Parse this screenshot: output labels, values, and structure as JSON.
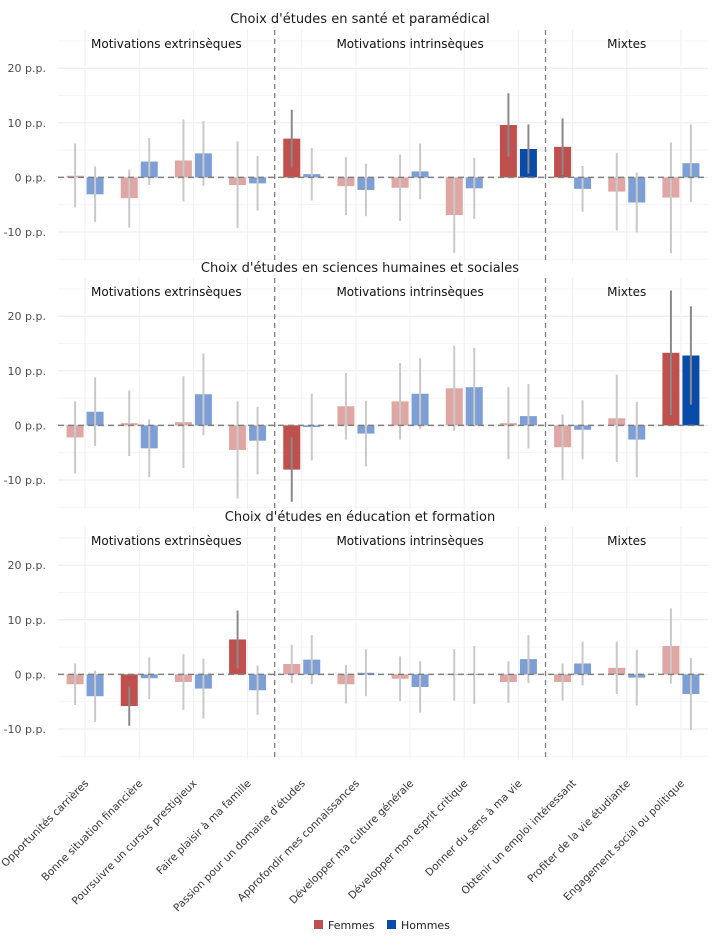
{
  "legend": [
    {
      "name": "Femmes",
      "color": "#c0504d"
    },
    {
      "name": "Hommes",
      "color": "#0a4aa8"
    }
  ],
  "colors": {
    "femmes_sig": "#c0504d",
    "femmes_nonsig": "#dfa6a3",
    "hommes_sig": "#0a4aa8",
    "hommes_nonsig": "#7d9fd6",
    "grid": "#ebebeb",
    "zero_line": "#808080",
    "separator": "#808080"
  },
  "chart_data": {
    "type": "bar",
    "categories": [
      "Opportunités carrières",
      "Bonne situation financière",
      "Poursuivre un cursus prestigieux",
      "Faire plaisir à ma famille",
      "Passion pour un domaine d'études",
      "Approfondir mes connaissances",
      "Développer ma culture générale",
      "Développer mon esprit critique",
      "Donner du sens à ma vie",
      "Obtenir un emploi intéressant",
      "Profiter de la vie étudiante",
      "Engagement social ou politique"
    ],
    "groups": [
      {
        "label": "Motivations extrinsèques",
        "count": 4
      },
      {
        "label": "Motivations intrinsèques",
        "count": 5
      },
      {
        "label": "Mixtes",
        "count": 3
      }
    ],
    "y_ticks": [
      -10,
      0,
      10,
      20
    ],
    "y_tick_labels": [
      "-10 p.p.",
      "0 p.p.",
      "10 p.p.",
      "20 p.p."
    ],
    "ylim": [
      -15.5,
      27
    ],
    "grid": true,
    "legend_position": "bottom",
    "panels": [
      {
        "title": "Choix d'études en santé et paramédical",
        "femmes": [
          {
            "v": 0.3,
            "lo": -5.5,
            "hi": 6.2,
            "sig": false
          },
          {
            "v": -3.8,
            "lo": -9.2,
            "hi": 1.4,
            "sig": false
          },
          {
            "v": 3.1,
            "lo": -4.4,
            "hi": 10.6,
            "sig": false
          },
          {
            "v": -1.4,
            "lo": -9.3,
            "hi": 6.6,
            "sig": false
          },
          {
            "v": 7.1,
            "lo": 1.8,
            "hi": 12.4,
            "sig": true
          },
          {
            "v": -1.6,
            "lo": -6.9,
            "hi": 3.7,
            "sig": false
          },
          {
            "v": -1.9,
            "lo": -8.0,
            "hi": 4.2,
            "sig": false
          },
          {
            "v": -6.9,
            "lo": -13.8,
            "hi": 0.0,
            "sig": false
          },
          {
            "v": 9.6,
            "lo": 3.8,
            "hi": 15.4,
            "sig": true
          },
          {
            "v": 5.6,
            "lo": 0.4,
            "hi": 10.8,
            "sig": true
          },
          {
            "v": -2.6,
            "lo": -9.7,
            "hi": 4.5,
            "sig": false
          },
          {
            "v": -3.7,
            "lo": -13.9,
            "hi": 6.4,
            "sig": false
          }
        ],
        "hommes": [
          {
            "v": -3.1,
            "lo": -8.2,
            "hi": 2.0,
            "sig": false
          },
          {
            "v": 2.9,
            "lo": -1.4,
            "hi": 7.2,
            "sig": false
          },
          {
            "v": 4.4,
            "lo": -1.5,
            "hi": 10.3,
            "sig": false
          },
          {
            "v": -1.1,
            "lo": -6.1,
            "hi": 3.9,
            "sig": false
          },
          {
            "v": 0.6,
            "lo": -4.2,
            "hi": 5.4,
            "sig": false
          },
          {
            "v": -2.3,
            "lo": -7.1,
            "hi": 2.5,
            "sig": false
          },
          {
            "v": 1.1,
            "lo": -4.0,
            "hi": 6.2,
            "sig": false
          },
          {
            "v": -2.0,
            "lo": -7.6,
            "hi": 3.6,
            "sig": false
          },
          {
            "v": 5.2,
            "lo": 0.7,
            "hi": 9.7,
            "sig": true
          },
          {
            "v": -2.1,
            "lo": -6.3,
            "hi": 2.1,
            "sig": false
          },
          {
            "v": -4.6,
            "lo": -10.1,
            "hi": 0.9,
            "sig": false
          },
          {
            "v": 2.6,
            "lo": -4.5,
            "hi": 9.7,
            "sig": false
          }
        ]
      },
      {
        "title": "Choix d'études en sciences humaines et sociales",
        "femmes": [
          {
            "v": -2.2,
            "lo": -8.8,
            "hi": 4.4,
            "sig": false
          },
          {
            "v": 0.4,
            "lo": -5.6,
            "hi": 6.4,
            "sig": false
          },
          {
            "v": 0.6,
            "lo": -7.8,
            "hi": 9.0,
            "sig": false
          },
          {
            "v": -4.5,
            "lo": -13.4,
            "hi": 4.4,
            "sig": false
          },
          {
            "v": -8.1,
            "lo": -14.0,
            "hi": -2.2,
            "sig": true
          },
          {
            "v": 3.5,
            "lo": -2.6,
            "hi": 9.6,
            "sig": false
          },
          {
            "v": 4.4,
            "lo": -2.6,
            "hi": 11.4,
            "sig": false
          },
          {
            "v": 6.8,
            "lo": -1.0,
            "hi": 14.6,
            "sig": false
          },
          {
            "v": 0.4,
            "lo": -6.2,
            "hi": 7.0,
            "sig": false
          },
          {
            "v": -4.0,
            "lo": -10.0,
            "hi": 2.0,
            "sig": false
          },
          {
            "v": 1.3,
            "lo": -6.7,
            "hi": 9.3,
            "sig": false
          },
          {
            "v": 13.3,
            "lo": 1.9,
            "hi": 24.7,
            "sig": true
          }
        ],
        "hommes": [
          {
            "v": 2.5,
            "lo": -3.8,
            "hi": 8.8,
            "sig": false
          },
          {
            "v": -4.2,
            "lo": -9.5,
            "hi": 1.1,
            "sig": false
          },
          {
            "v": 5.7,
            "lo": -1.8,
            "hi": 13.2,
            "sig": false
          },
          {
            "v": -2.8,
            "lo": -9.0,
            "hi": 3.4,
            "sig": false
          },
          {
            "v": -0.3,
            "lo": -6.4,
            "hi": 5.8,
            "sig": false
          },
          {
            "v": -1.5,
            "lo": -7.5,
            "hi": 4.5,
            "sig": false
          },
          {
            "v": 5.8,
            "lo": -0.7,
            "hi": 12.3,
            "sig": false
          },
          {
            "v": 7.0,
            "lo": -0.2,
            "hi": 14.2,
            "sig": false
          },
          {
            "v": 1.7,
            "lo": -4.2,
            "hi": 7.6,
            "sig": false
          },
          {
            "v": -0.8,
            "lo": -6.2,
            "hi": 4.6,
            "sig": false
          },
          {
            "v": -2.6,
            "lo": -9.5,
            "hi": 4.3,
            "sig": false
          },
          {
            "v": 12.8,
            "lo": 3.8,
            "hi": 21.8,
            "sig": true
          }
        ]
      },
      {
        "title": "Choix d'études en éducation et formation",
        "femmes": [
          {
            "v": -1.8,
            "lo": -5.6,
            "hi": 2.0,
            "sig": false
          },
          {
            "v": -5.8,
            "lo": -9.4,
            "hi": -2.2,
            "sig": true
          },
          {
            "v": -1.4,
            "lo": -6.5,
            "hi": 3.7,
            "sig": false
          },
          {
            "v": 6.4,
            "lo": 1.1,
            "hi": 11.7,
            "sig": true
          },
          {
            "v": 1.9,
            "lo": -1.6,
            "hi": 5.4,
            "sig": false
          },
          {
            "v": -1.8,
            "lo": -5.3,
            "hi": 1.7,
            "sig": false
          },
          {
            "v": -0.8,
            "lo": -4.9,
            "hi": 3.3,
            "sig": false
          },
          {
            "v": -0.1,
            "lo": -4.8,
            "hi": 4.6,
            "sig": false
          },
          {
            "v": -1.4,
            "lo": -5.2,
            "hi": 2.4,
            "sig": false
          },
          {
            "v": -1.4,
            "lo": -4.8,
            "hi": 2.0,
            "sig": false
          },
          {
            "v": 1.2,
            "lo": -3.6,
            "hi": 6.0,
            "sig": false
          },
          {
            "v": 5.2,
            "lo": -1.7,
            "hi": 12.1,
            "sig": false
          }
        ],
        "hommes": [
          {
            "v": -4.0,
            "lo": -8.7,
            "hi": 0.7,
            "sig": false
          },
          {
            "v": -0.7,
            "lo": -4.5,
            "hi": 3.1,
            "sig": false
          },
          {
            "v": -2.6,
            "lo": -8.1,
            "hi": 2.9,
            "sig": false
          },
          {
            "v": -2.9,
            "lo": -7.4,
            "hi": 1.6,
            "sig": false
          },
          {
            "v": 2.7,
            "lo": -1.8,
            "hi": 7.2,
            "sig": false
          },
          {
            "v": 0.3,
            "lo": -4.0,
            "hi": 4.6,
            "sig": false
          },
          {
            "v": -2.3,
            "lo": -7.0,
            "hi": 2.4,
            "sig": false
          },
          {
            "v": -0.1,
            "lo": -5.4,
            "hi": 5.2,
            "sig": false
          },
          {
            "v": 2.8,
            "lo": -1.6,
            "hi": 7.2,
            "sig": false
          },
          {
            "v": 2.0,
            "lo": -2.0,
            "hi": 6.0,
            "sig": false
          },
          {
            "v": -0.6,
            "lo": -5.7,
            "hi": 4.5,
            "sig": false
          },
          {
            "v": -3.6,
            "lo": -10.2,
            "hi": 3.0,
            "sig": false
          }
        ]
      }
    ]
  }
}
